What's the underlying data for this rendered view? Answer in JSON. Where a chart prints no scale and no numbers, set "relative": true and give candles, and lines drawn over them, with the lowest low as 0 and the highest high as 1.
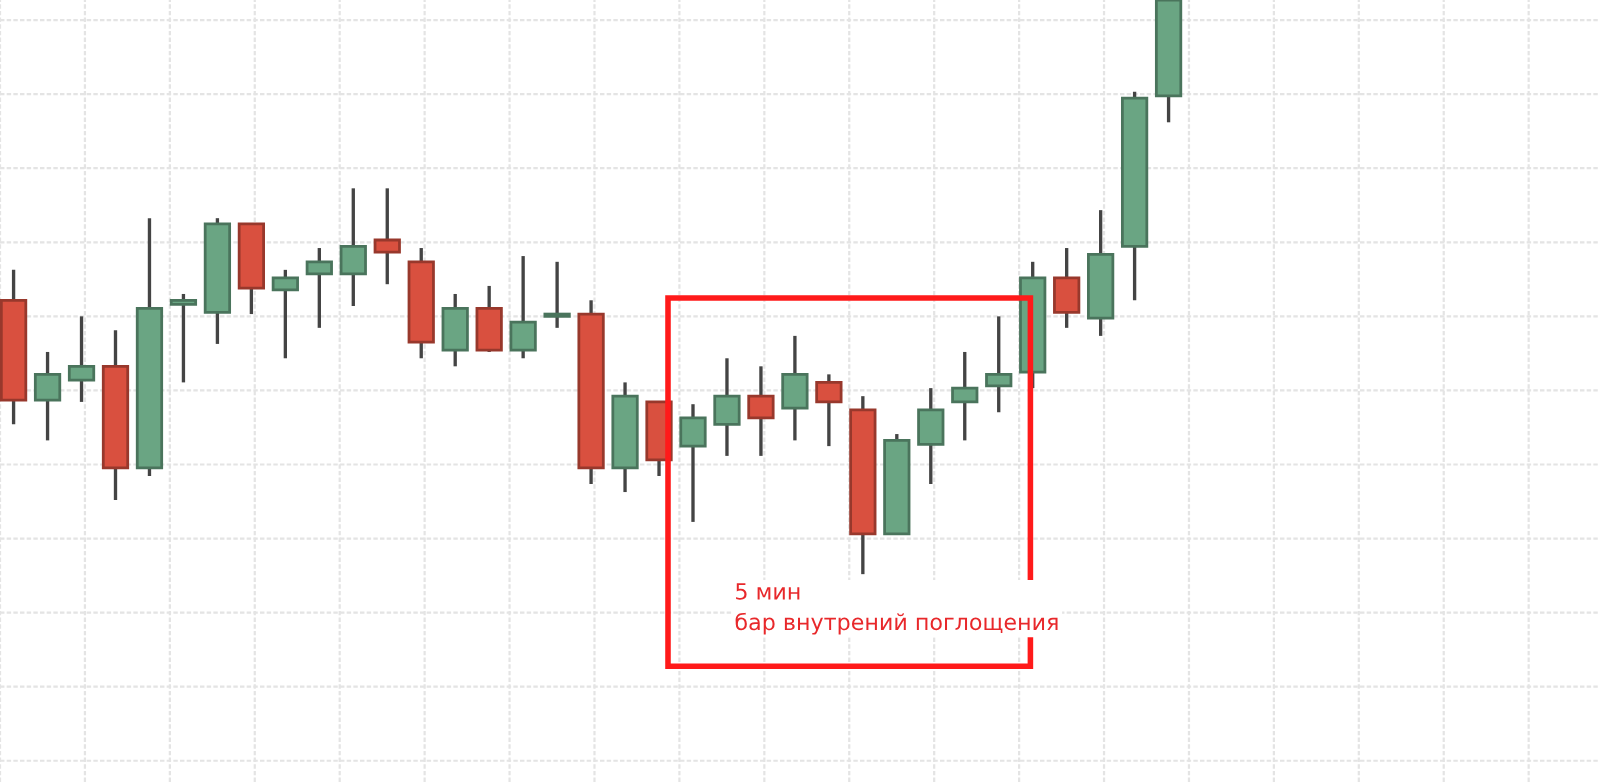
{
  "chart_data": {
    "type": "candlestick",
    "relative": true,
    "grid": true,
    "categories": [
      null,
      null,
      null,
      null,
      null,
      null,
      null,
      null,
      null,
      null,
      null,
      null,
      null,
      null,
      null,
      null,
      null,
      null,
      null,
      null,
      null,
      null,
      null,
      null,
      null,
      null,
      null,
      null,
      null,
      null,
      null,
      null,
      null,
      null,
      null
    ],
    "ohlc": [
      [
        0.477,
        0.53,
        0.261,
        0.303
      ],
      [
        0.303,
        0.387,
        0.233,
        0.348
      ],
      [
        0.338,
        0.449,
        0.3,
        0.362
      ],
      [
        0.362,
        0.425,
        0.129,
        0.185
      ],
      [
        0.185,
        0.62,
        0.171,
        0.463
      ],
      [
        0.47,
        0.488,
        0.334,
        0.477
      ],
      [
        0.456,
        0.62,
        0.401,
        0.61
      ],
      [
        0.61,
        0.61,
        0.453,
        0.498
      ],
      [
        0.495,
        0.53,
        0.376,
        0.516
      ],
      [
        0.523,
        0.568,
        0.429,
        0.544
      ],
      [
        0.523,
        0.672,
        0.467,
        0.571
      ],
      [
        0.582,
        0.672,
        0.505,
        0.561
      ],
      [
        0.544,
        0.568,
        0.376,
        0.404
      ],
      [
        0.39,
        0.488,
        0.362,
        0.463
      ],
      [
        0.463,
        0.502,
        0.387,
        0.39
      ],
      [
        0.39,
        0.554,
        0.376,
        0.439
      ],
      [
        0.449,
        0.544,
        0.429,
        0.453
      ],
      [
        0.453,
        0.477,
        0.157,
        0.185
      ],
      [
        0.185,
        0.334,
        0.143,
        0.31
      ],
      [
        0.3,
        0.3,
        0.171,
        0.199
      ],
      [
        0.223,
        0.296,
        0.091,
        0.272
      ],
      [
        0.261,
        0.376,
        0.206,
        0.31
      ],
      [
        0.31,
        0.362,
        0.206,
        0.272
      ],
      [
        0.289,
        0.415,
        0.233,
        0.348
      ],
      [
        0.334,
        0.348,
        0.223,
        0.3
      ],
      [
        0.286,
        0.31,
        0.0,
        0.07
      ],
      [
        0.07,
        0.244,
        0.07,
        0.233
      ],
      [
        0.226,
        0.324,
        0.157,
        0.286
      ],
      [
        0.3,
        0.387,
        0.233,
        0.324
      ],
      [
        0.328,
        0.449,
        0.282,
        0.348
      ],
      [
        0.352,
        0.544,
        0.324,
        0.516
      ],
      [
        0.516,
        0.568,
        0.429,
        0.456
      ],
      [
        0.446,
        0.634,
        0.415,
        0.557
      ],
      [
        0.571,
        0.84,
        0.477,
        0.829
      ],
      [
        0.833,
        1.0,
        0.787,
        1.0
      ]
    ],
    "colors": [
      "#d9503f",
      "#6aa583",
      "#6aa583",
      "#d9503f",
      "#6aa583",
      "#6aa583",
      "#6aa583",
      "#d9503f",
      "#6aa583",
      "#6aa583",
      "#6aa583",
      "#d9503f",
      "#d9503f",
      "#6aa583",
      "#d9503f",
      "#6aa583",
      "#6aa583",
      "#d9503f",
      "#6aa583",
      "#d9503f",
      "#6aa583",
      "#6aa583",
      "#d9503f",
      "#6aa583",
      "#d9503f",
      "#d9503f",
      "#6aa583",
      "#6aa583",
      "#6aa583",
      "#6aa583",
      "#6aa583",
      "#d9503f",
      "#6aa583",
      "#6aa583",
      "#6aa583"
    ],
    "annotations": [
      "5 мин\nбар внутрений поглощения"
    ]
  }
}
